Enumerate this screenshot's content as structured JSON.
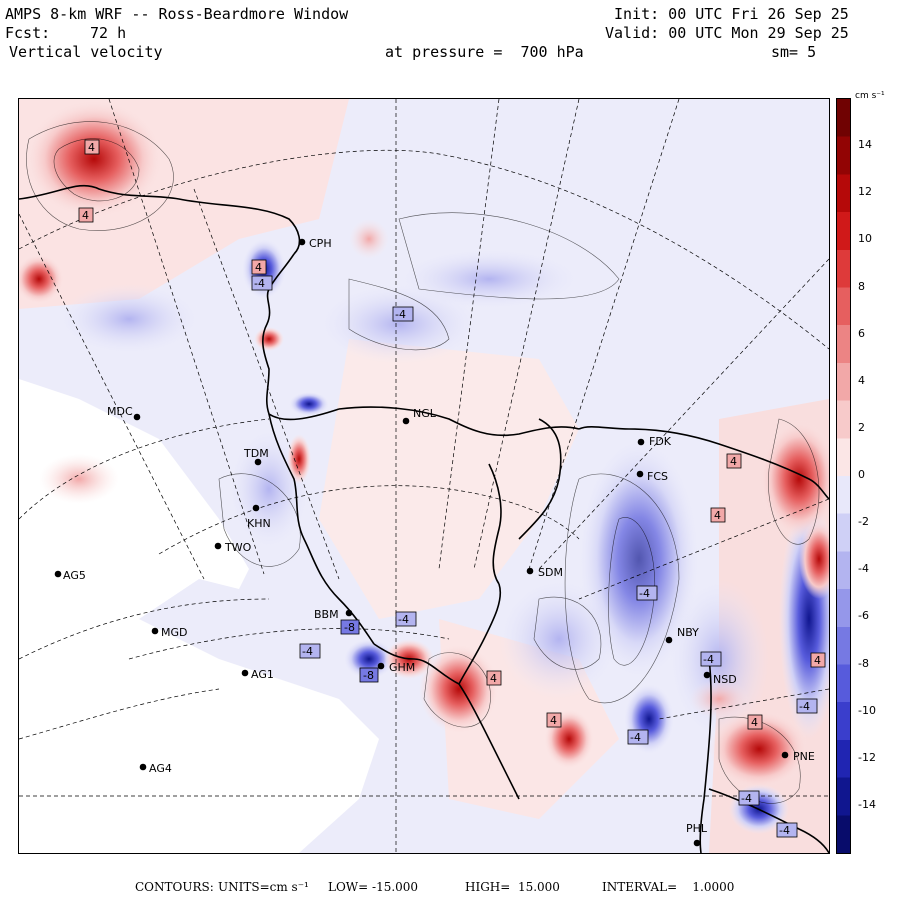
{
  "header": {
    "title": "AMPS 8-km WRF -- Ross-Beardmore Window",
    "init": "Init: 00 UTC Fri 26 Sep 25",
    "fcst_label": "Fcst:",
    "fcst_value": "72 h",
    "valid": "Valid: 00 UTC Mon 29 Sep 25",
    "field": "Vertical velocity",
    "pressure": "at pressure =  700 hPa",
    "smoothing": "sm= 5"
  },
  "colorbar": {
    "unit": "cm s⁻¹",
    "ticks": [
      "14",
      "12",
      "10",
      "8",
      "6",
      "4",
      "2",
      "0",
      "-2",
      "-4",
      "-6",
      "-8",
      "-10",
      "-12",
      "-14"
    ],
    "tick_values": [
      14,
      12,
      10,
      8,
      6,
      4,
      2,
      0,
      -2,
      -4,
      -6,
      -8,
      -10,
      -12,
      -14
    ],
    "range": [
      -16,
      16
    ],
    "warm_colors": [
      "#fbe6e6",
      "#f7caca",
      "#f2a8a8",
      "#ec8484",
      "#e65f5f",
      "#de3a3a",
      "#d01919",
      "#b50909",
      "#920404",
      "#700202"
    ],
    "cool_colors": [
      "#e8e8fa",
      "#cfd0f6",
      "#b3b4f0",
      "#9597ea",
      "#7679e3",
      "#575bdc",
      "#3a3ecc",
      "#2025b2",
      "#10168f",
      "#080c6b"
    ]
  },
  "footer": {
    "contours_label": "CONTOURS:",
    "units": "UNITS=cm s⁻¹",
    "low": "LOW= -15.000",
    "high": "HIGH=  15.000",
    "interval": "INTERVAL=    1.0000"
  },
  "stations": [
    {
      "id": "cph",
      "name": "CPH"
    },
    {
      "id": "mdc",
      "name": "MDC"
    },
    {
      "id": "ngl",
      "name": "NGL"
    },
    {
      "id": "fdk",
      "name": "FDK"
    },
    {
      "id": "tdm",
      "name": "TDM"
    },
    {
      "id": "fcs",
      "name": "FCS"
    },
    {
      "id": "khn",
      "name": "KHN"
    },
    {
      "id": "two",
      "name": "TWO"
    },
    {
      "id": "ag5",
      "name": "AG5"
    },
    {
      "id": "sdm",
      "name": "SDM"
    },
    {
      "id": "mgd",
      "name": "MGD"
    },
    {
      "id": "nby",
      "name": "NBY"
    },
    {
      "id": "ag1",
      "name": "AG1"
    },
    {
      "id": "bbm",
      "name": "BBM"
    },
    {
      "id": "ghm",
      "name": "GHM"
    },
    {
      "id": "nsd",
      "name": "NSD"
    },
    {
      "id": "pne",
      "name": "PNE"
    },
    {
      "id": "ag4",
      "name": "AG4"
    },
    {
      "id": "phl",
      "name": "PHL"
    }
  ],
  "contour_labels": [
    {
      "id": "c1",
      "text": "4",
      "sign": "warm"
    },
    {
      "id": "c2",
      "text": "4",
      "sign": "warm"
    },
    {
      "id": "c3",
      "text": "-4",
      "sign": "cool"
    },
    {
      "id": "c4",
      "text": "-4",
      "sign": "cool"
    },
    {
      "id": "c5",
      "text": "4",
      "sign": "warm"
    },
    {
      "id": "c6",
      "text": "4",
      "sign": "warm"
    },
    {
      "id": "c7",
      "text": "-4",
      "sign": "cool"
    },
    {
      "id": "c8",
      "text": "-8",
      "sign": "cool"
    },
    {
      "id": "c9",
      "text": "-4",
      "sign": "cool"
    },
    {
      "id": "c10",
      "text": "-8",
      "sign": "cool"
    },
    {
      "id": "c11",
      "text": "4",
      "sign": "warm"
    },
    {
      "id": "c12",
      "text": "-4",
      "sign": "cool"
    },
    {
      "id": "c13",
      "text": "-4",
      "sign": "cool"
    },
    {
      "id": "c14",
      "text": "4",
      "sign": "warm"
    },
    {
      "id": "c15",
      "text": "-4",
      "sign": "cool"
    },
    {
      "id": "c16",
      "text": "4",
      "sign": "warm"
    },
    {
      "id": "c17",
      "text": "4",
      "sign": "warm"
    },
    {
      "id": "c18",
      "text": "-4",
      "sign": "cool"
    },
    {
      "id": "c19",
      "text": "-4",
      "sign": "cool"
    },
    {
      "id": "c20",
      "text": "4",
      "sign": "warm"
    },
    {
      "id": "c21",
      "text": "-4",
      "sign": "cool"
    }
  ]
}
